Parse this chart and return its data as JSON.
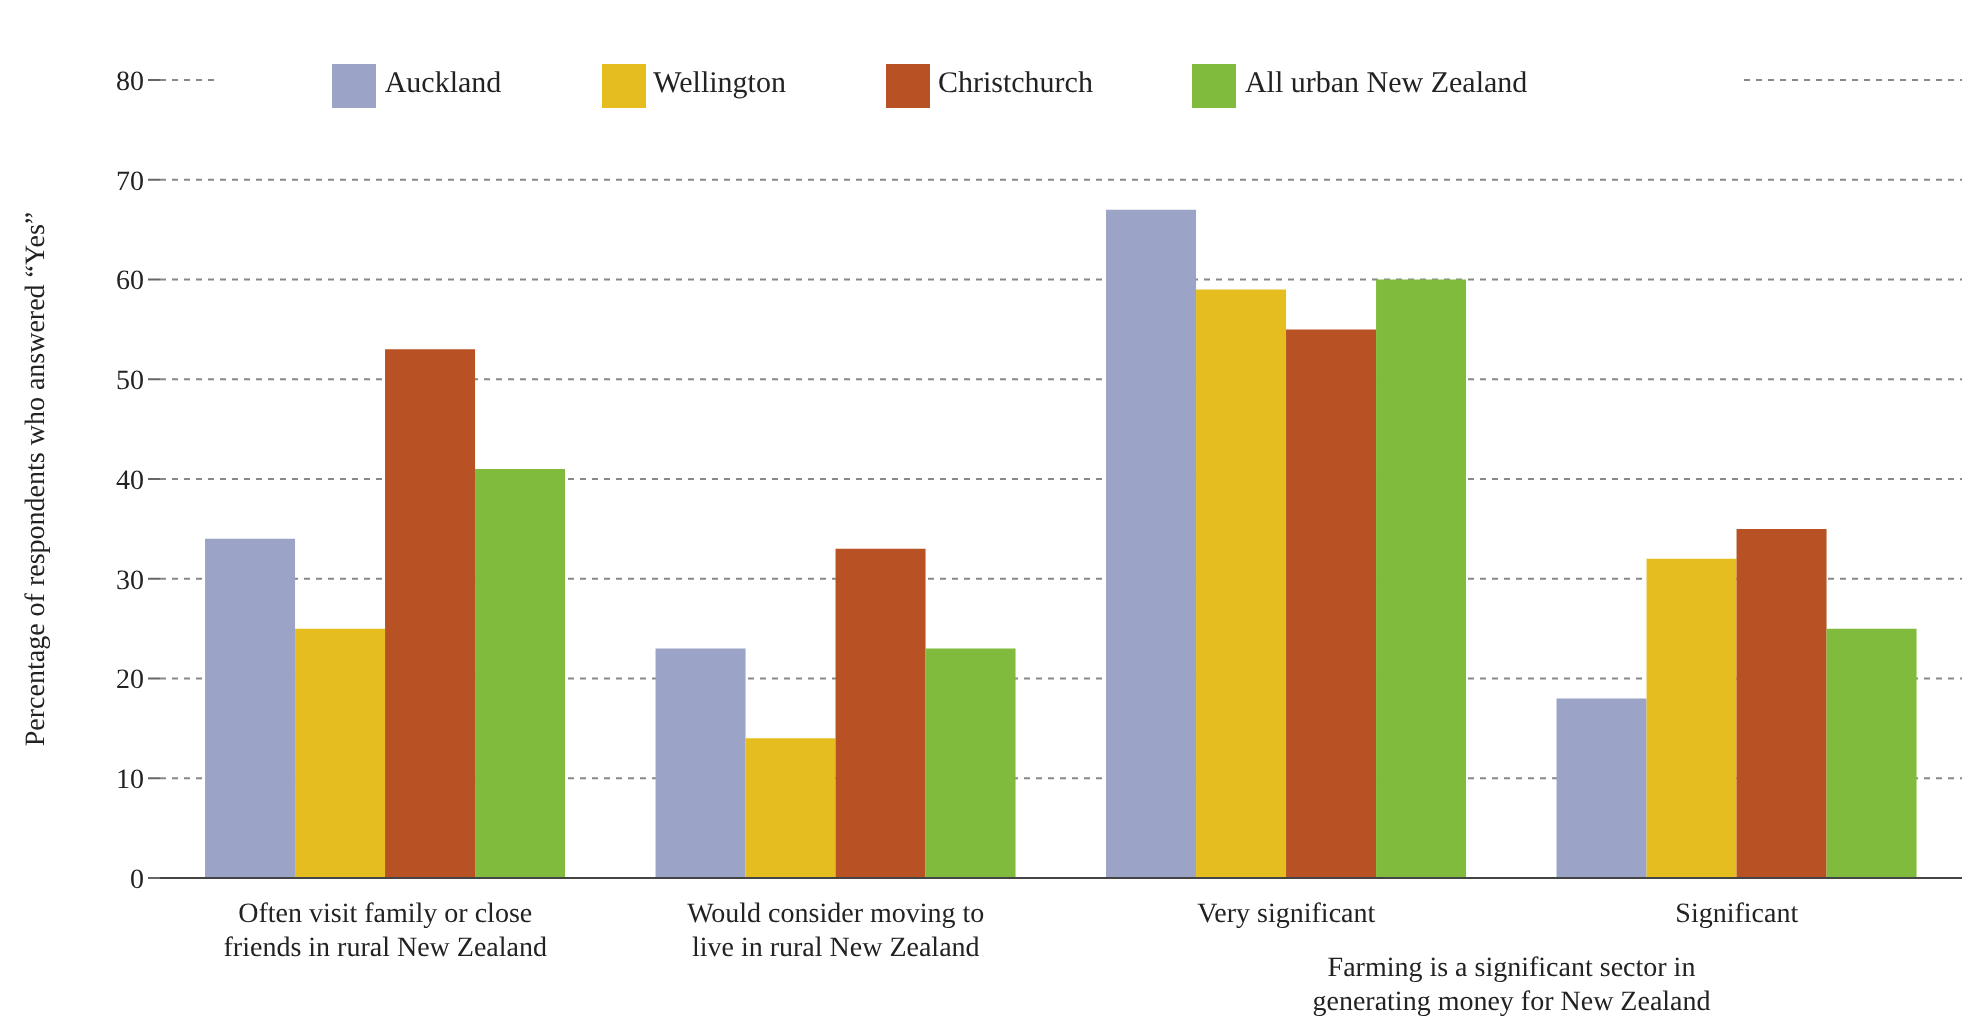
{
  "chart_data": {
    "type": "bar",
    "ylabel": "Percentage of respondents who answered “Yes”",
    "categories": [
      "Often visit family or close friends in rural New Zealand",
      "Would consider moving to live in rural New Zealand",
      "Very significant",
      "Significant"
    ],
    "series": [
      {
        "name": "Auckland",
        "color": "#9ba3c6",
        "values": [
          34,
          23,
          67,
          18
        ]
      },
      {
        "name": "Wellington",
        "color": "#e5bd1f",
        "values": [
          25,
          14,
          59,
          32
        ]
      },
      {
        "name": "Christchurch",
        "color": "#b85124",
        "values": [
          53,
          33,
          55,
          35
        ]
      },
      {
        "name": "All urban New Zealand",
        "color": "#80bb3d",
        "values": [
          41,
          23,
          60,
          25
        ]
      }
    ],
    "annotations": [
      "Farming is a significant sector in generating money for New Zealand"
    ],
    "ylim": [
      0,
      80
    ],
    "yticks": [
      0,
      10,
      20,
      30,
      40,
      50,
      60,
      70,
      80
    ],
    "grid": "y",
    "legend": "top"
  }
}
